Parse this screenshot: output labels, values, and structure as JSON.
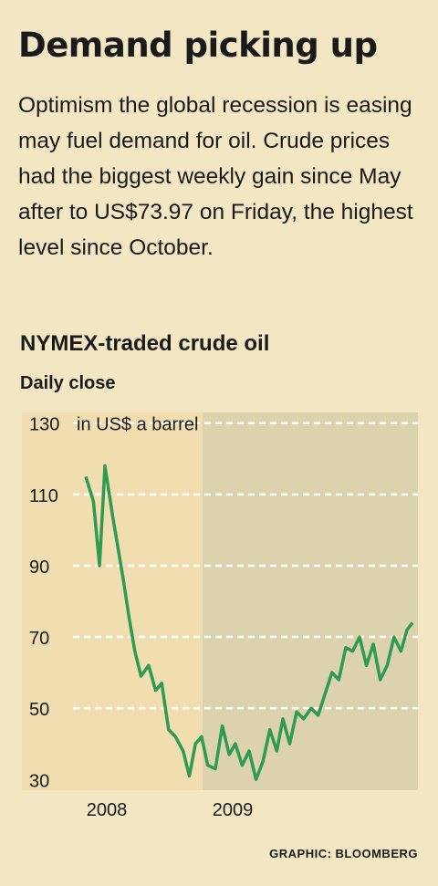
{
  "headline": "Demand picking up",
  "blurb": "Optimism the global recession is easing may fuel demand for oil. Crude prices had the biggest weekly gain since May after to US$73.97 on Friday, the highest level since October.",
  "credit": "GRAPHIC: BLOOMBERG",
  "colors": {
    "background": "#f3e6c2",
    "plot_2008": "#f0deb0",
    "plot_2009": "#ddd2ae",
    "line": "#2f9a52",
    "gridline": "#ffffff"
  },
  "chart_data": {
    "type": "line",
    "title": "NYMEX-traded crude oil",
    "subtitle": "Daily close",
    "unit_label": "in US$ a barrel",
    "y_ticks": [
      30,
      50,
      70,
      90,
      110,
      130
    ],
    "ylim": [
      27,
      133
    ],
    "x_ticks": [
      "2008",
      "2009"
    ],
    "x_range": [
      "2008-06-15",
      "2009-08-15"
    ],
    "shaded_regions": [
      "2008",
      "2009"
    ],
    "grid": true,
    "series": [
      {
        "x": [
          "2008-06-15",
          "2008-06-25",
          "2008-07-03",
          "2008-07-10",
          "2008-07-20",
          "2008-07-27",
          "2008-08-03",
          "2008-08-10",
          "2008-08-18",
          "2008-08-26",
          "2008-09-05",
          "2008-09-14",
          "2008-09-22",
          "2008-10-01",
          "2008-10-10",
          "2008-10-20",
          "2008-10-28",
          "2008-11-05",
          "2008-11-13",
          "2008-11-21",
          "2008-12-01",
          "2008-12-10",
          "2008-12-19",
          "2008-12-27",
          "2009-01-05",
          "2009-01-14",
          "2009-01-23",
          "2009-02-01",
          "2009-02-10",
          "2009-02-19",
          "2009-02-27",
          "2009-03-08",
          "2009-03-17",
          "2009-03-26",
          "2009-04-05",
          "2009-04-14",
          "2009-04-23",
          "2009-05-02",
          "2009-05-11",
          "2009-05-20",
          "2009-05-29",
          "2009-06-07",
          "2009-06-16",
          "2009-06-25",
          "2009-07-04",
          "2009-07-13",
          "2009-07-22",
          "2009-07-31",
          "2009-08-08",
          "2009-08-15"
        ],
        "y": [
          115,
          108,
          90,
          118,
          104,
          95,
          86,
          76,
          66,
          59,
          62,
          55,
          57,
          44,
          42,
          38,
          31,
          40,
          42,
          34,
          33,
          45,
          37,
          40,
          34,
          38,
          30,
          35,
          44,
          38,
          47,
          40,
          49,
          47,
          50,
          48,
          54,
          60,
          58,
          67,
          66,
          70,
          62,
          68,
          58,
          62,
          70,
          66,
          72,
          73.97
        ]
      }
    ]
  }
}
